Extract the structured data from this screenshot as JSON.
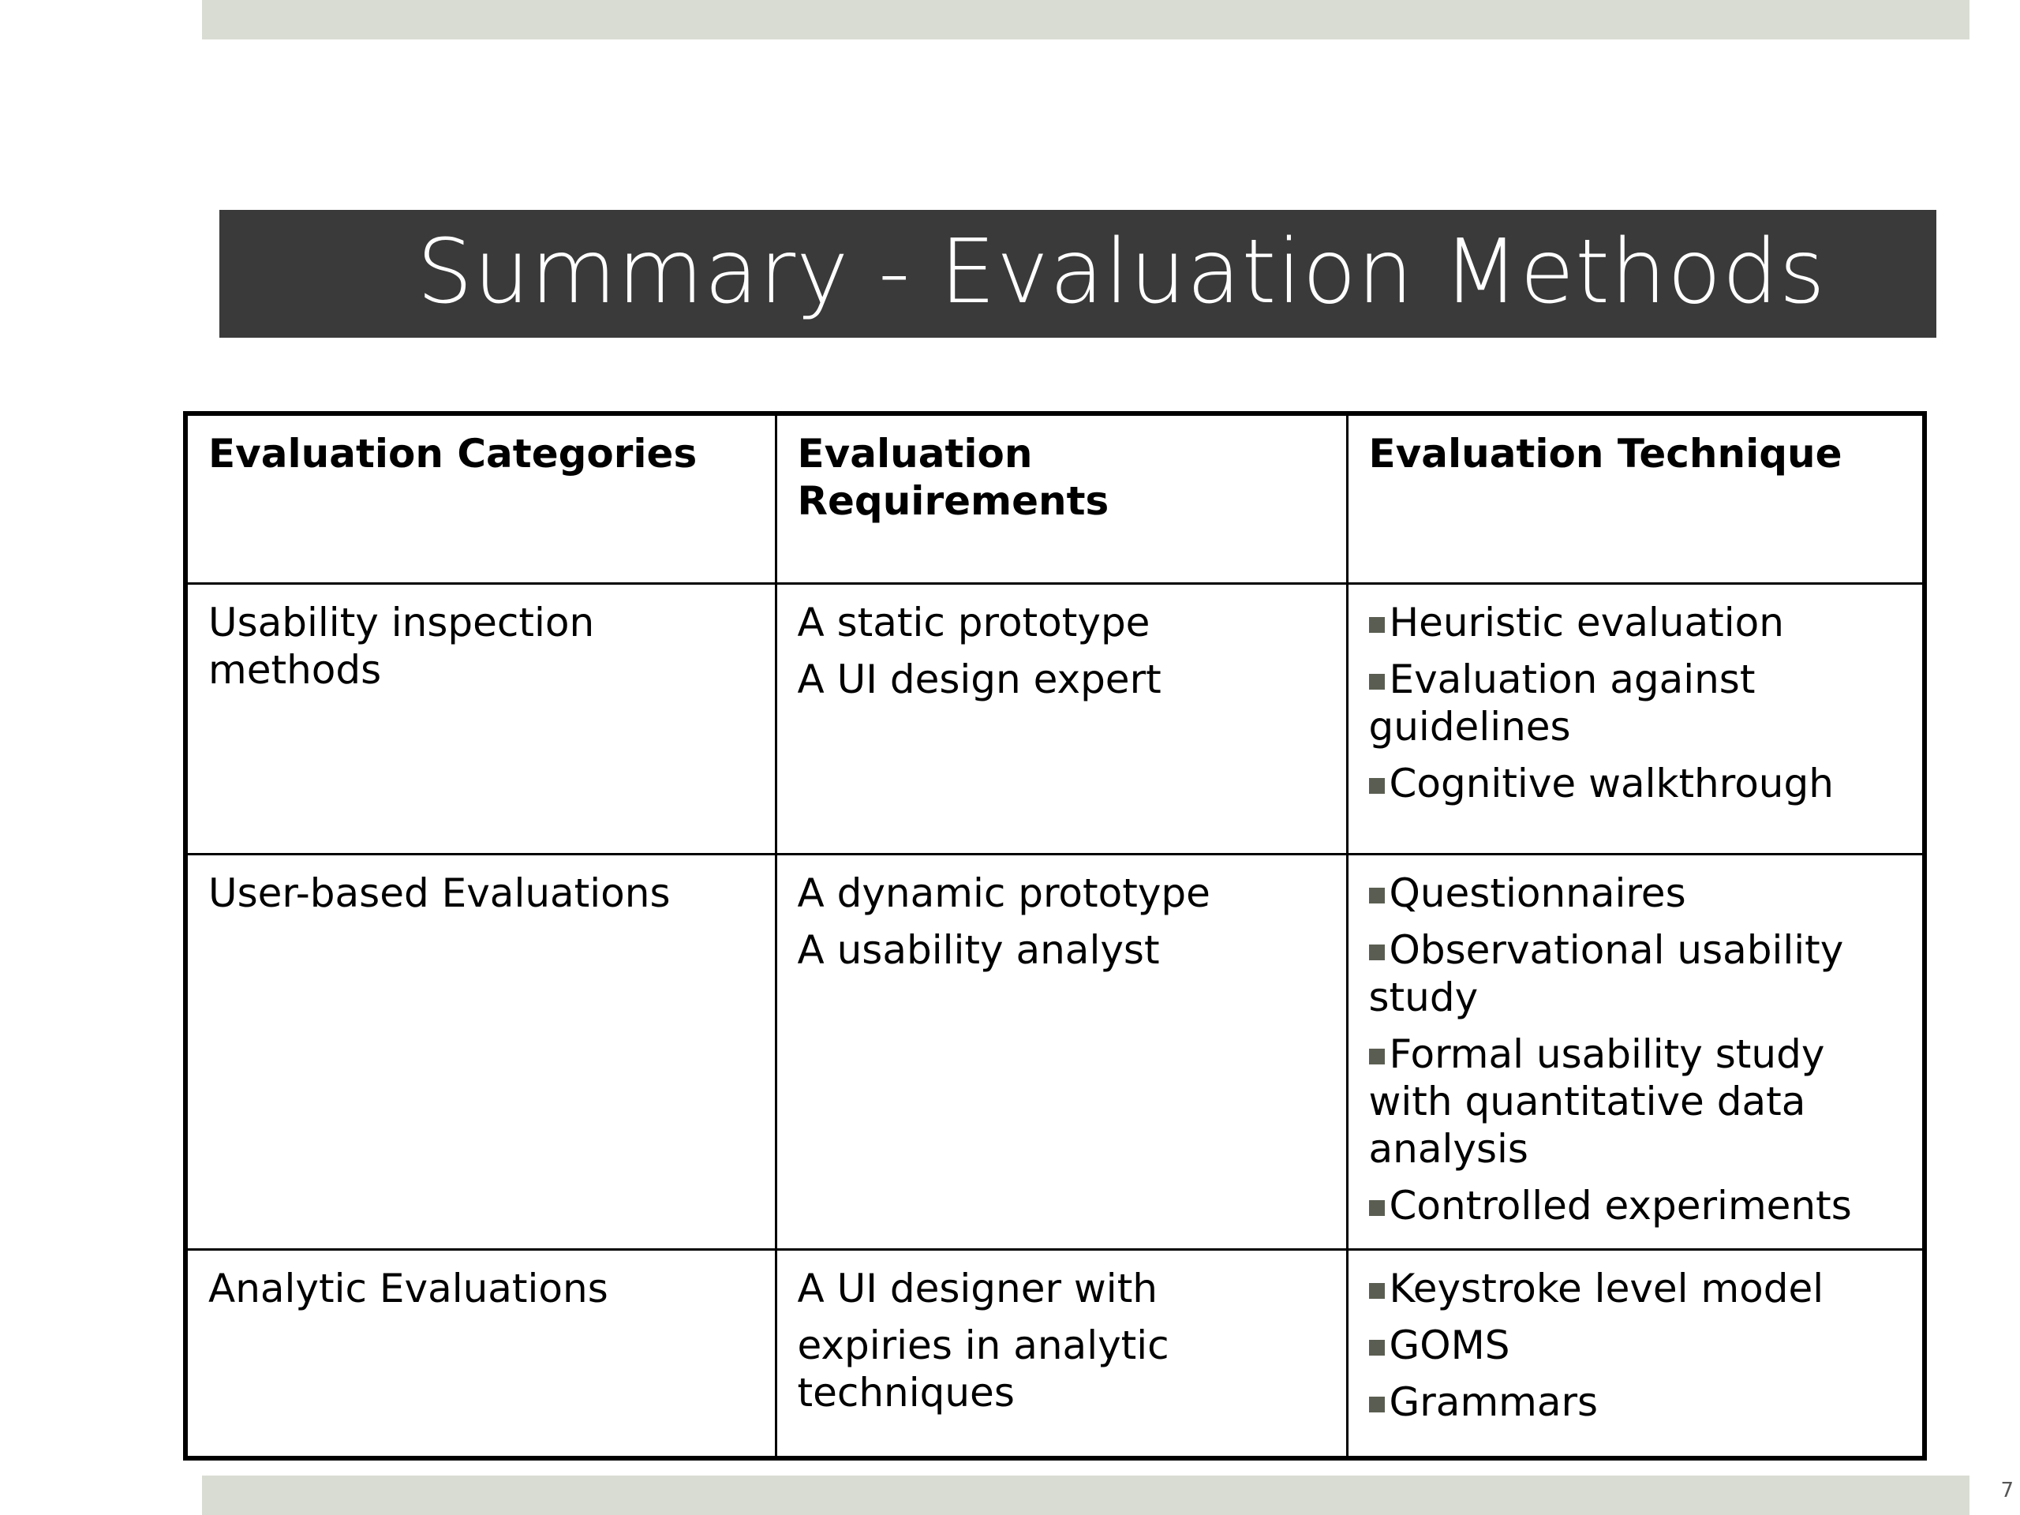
{
  "slide": {
    "title": "Summary - Evaluation Methods",
    "page_number": "7"
  },
  "table": {
    "headers": [
      "Evaluation Categories",
      "Evaluation Requirements",
      "Evaluation Technique"
    ],
    "rows": [
      {
        "category": "Usability inspection methods",
        "requirements": [
          "A static prototype",
          "A UI design expert"
        ],
        "techniques": [
          "Heuristic evaluation",
          "Evaluation against guidelines",
          "Cognitive walkthrough"
        ]
      },
      {
        "category": "User-based Evaluations",
        "requirements": [
          "A dynamic prototype",
          "A usability analyst"
        ],
        "techniques": [
          "Questionnaires",
          "Observational usability study",
          "Formal usability study with quantitative data analysis",
          "Controlled experiments"
        ]
      },
      {
        "category": "Analytic Evaluations",
        "requirements": [
          "A UI designer with",
          "expiries in analytic techniques"
        ],
        "techniques": [
          "Keystroke level model",
          "GOMS",
          "Grammars"
        ]
      }
    ]
  },
  "colors": {
    "title_band": "#3a3a3a",
    "accent_bars": "#d8dcd3",
    "bullet": "#5a5e52"
  }
}
